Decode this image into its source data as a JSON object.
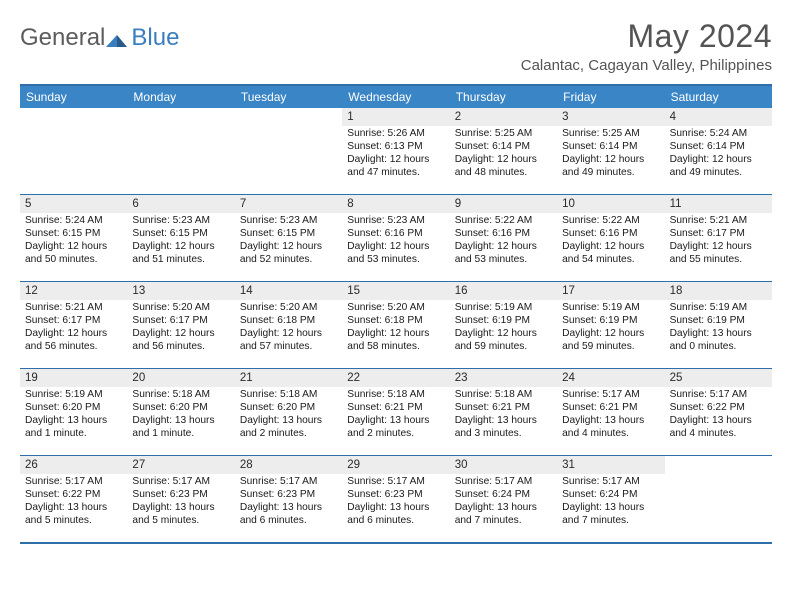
{
  "logo": {
    "text1": "General",
    "text2": "Blue"
  },
  "title": "May 2024",
  "location": "Calantac, Cagayan Valley, Philippines",
  "colors": {
    "header_bg": "#3a85c6",
    "border": "#2f6fa7",
    "daynum_bg": "#ededed",
    "logo_accent": "#3a7ebf",
    "text_muted": "#545454"
  },
  "daysOfWeek": [
    "Sunday",
    "Monday",
    "Tuesday",
    "Wednesday",
    "Thursday",
    "Friday",
    "Saturday"
  ],
  "weeks": [
    [
      null,
      null,
      null,
      {
        "n": "1",
        "sr": "5:26 AM",
        "ss": "6:13 PM",
        "dl": "12 hours and 47 minutes."
      },
      {
        "n": "2",
        "sr": "5:25 AM",
        "ss": "6:14 PM",
        "dl": "12 hours and 48 minutes."
      },
      {
        "n": "3",
        "sr": "5:25 AM",
        "ss": "6:14 PM",
        "dl": "12 hours and 49 minutes."
      },
      {
        "n": "4",
        "sr": "5:24 AM",
        "ss": "6:14 PM",
        "dl": "12 hours and 49 minutes."
      }
    ],
    [
      {
        "n": "5",
        "sr": "5:24 AM",
        "ss": "6:15 PM",
        "dl": "12 hours and 50 minutes."
      },
      {
        "n": "6",
        "sr": "5:23 AM",
        "ss": "6:15 PM",
        "dl": "12 hours and 51 minutes."
      },
      {
        "n": "7",
        "sr": "5:23 AM",
        "ss": "6:15 PM",
        "dl": "12 hours and 52 minutes."
      },
      {
        "n": "8",
        "sr": "5:23 AM",
        "ss": "6:16 PM",
        "dl": "12 hours and 53 minutes."
      },
      {
        "n": "9",
        "sr": "5:22 AM",
        "ss": "6:16 PM",
        "dl": "12 hours and 53 minutes."
      },
      {
        "n": "10",
        "sr": "5:22 AM",
        "ss": "6:16 PM",
        "dl": "12 hours and 54 minutes."
      },
      {
        "n": "11",
        "sr": "5:21 AM",
        "ss": "6:17 PM",
        "dl": "12 hours and 55 minutes."
      }
    ],
    [
      {
        "n": "12",
        "sr": "5:21 AM",
        "ss": "6:17 PM",
        "dl": "12 hours and 56 minutes."
      },
      {
        "n": "13",
        "sr": "5:20 AM",
        "ss": "6:17 PM",
        "dl": "12 hours and 56 minutes."
      },
      {
        "n": "14",
        "sr": "5:20 AM",
        "ss": "6:18 PM",
        "dl": "12 hours and 57 minutes."
      },
      {
        "n": "15",
        "sr": "5:20 AM",
        "ss": "6:18 PM",
        "dl": "12 hours and 58 minutes."
      },
      {
        "n": "16",
        "sr": "5:19 AM",
        "ss": "6:19 PM",
        "dl": "12 hours and 59 minutes."
      },
      {
        "n": "17",
        "sr": "5:19 AM",
        "ss": "6:19 PM",
        "dl": "12 hours and 59 minutes."
      },
      {
        "n": "18",
        "sr": "5:19 AM",
        "ss": "6:19 PM",
        "dl": "13 hours and 0 minutes."
      }
    ],
    [
      {
        "n": "19",
        "sr": "5:19 AM",
        "ss": "6:20 PM",
        "dl": "13 hours and 1 minute."
      },
      {
        "n": "20",
        "sr": "5:18 AM",
        "ss": "6:20 PM",
        "dl": "13 hours and 1 minute."
      },
      {
        "n": "21",
        "sr": "5:18 AM",
        "ss": "6:20 PM",
        "dl": "13 hours and 2 minutes."
      },
      {
        "n": "22",
        "sr": "5:18 AM",
        "ss": "6:21 PM",
        "dl": "13 hours and 2 minutes."
      },
      {
        "n": "23",
        "sr": "5:18 AM",
        "ss": "6:21 PM",
        "dl": "13 hours and 3 minutes."
      },
      {
        "n": "24",
        "sr": "5:17 AM",
        "ss": "6:21 PM",
        "dl": "13 hours and 4 minutes."
      },
      {
        "n": "25",
        "sr": "5:17 AM",
        "ss": "6:22 PM",
        "dl": "13 hours and 4 minutes."
      }
    ],
    [
      {
        "n": "26",
        "sr": "5:17 AM",
        "ss": "6:22 PM",
        "dl": "13 hours and 5 minutes."
      },
      {
        "n": "27",
        "sr": "5:17 AM",
        "ss": "6:23 PM",
        "dl": "13 hours and 5 minutes."
      },
      {
        "n": "28",
        "sr": "5:17 AM",
        "ss": "6:23 PM",
        "dl": "13 hours and 6 minutes."
      },
      {
        "n": "29",
        "sr": "5:17 AM",
        "ss": "6:23 PM",
        "dl": "13 hours and 6 minutes."
      },
      {
        "n": "30",
        "sr": "5:17 AM",
        "ss": "6:24 PM",
        "dl": "13 hours and 7 minutes."
      },
      {
        "n": "31",
        "sr": "5:17 AM",
        "ss": "6:24 PM",
        "dl": "13 hours and 7 minutes."
      },
      null
    ]
  ],
  "labels": {
    "sunrise": "Sunrise:",
    "sunset": "Sunset:",
    "daylight": "Daylight:"
  }
}
